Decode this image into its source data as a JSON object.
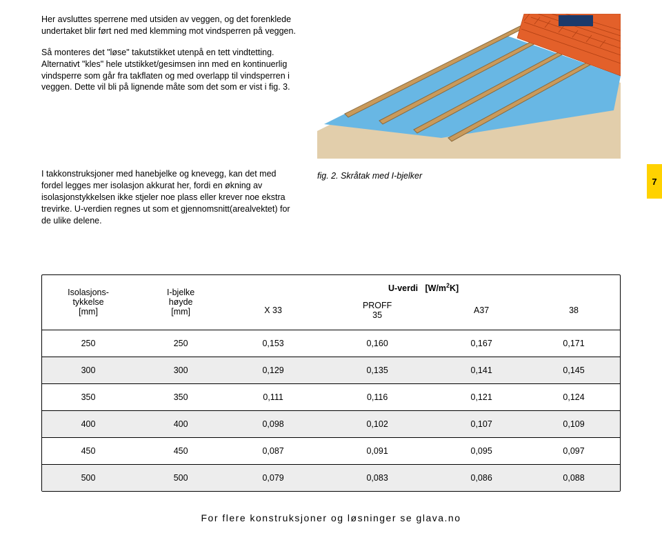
{
  "para1": "Her avsluttes sperrene med utsiden av veggen, og det forenklede undertaket blir ført ned med klemming mot vindsperren på veggen.",
  "para2": "Så monteres det \"løse\" takutstikket utenpå en tett vindtetting. Alternativt \"kles\" hele utstikket/gesimsen inn med en kontinuerlig vindsperre som går fra takflaten og med overlapp til vindsperren i veggen. Dette vil bli på lignende måte som det som er vist i fig. 3.",
  "para3": "I takkonstruksjoner med hanebjelke og knevegg, kan det med fordel legges mer isolasjon akkurat her, fordi en økning av isolasjonstykkelsen ikke stjeler noe plass eller krever noe ekstra trevirke. U-verdien regnes ut som et gjennomsnitt(arealvektet) for de ulike delene.",
  "figcaption": "fig. 2. Skråtak med I-bjelker",
  "page_tab": "7",
  "illustration": {
    "tile_color": "#e3602a",
    "underlayer_color": "#68b7e4",
    "wood_color": "#c99a5b",
    "base_color": "#e2ceab"
  },
  "table": {
    "header": {
      "col1_line1": "Isolasjons-",
      "col1_line2": "tykkelse",
      "col1_line3": "[mm]",
      "col2_line1": "I-bjelke",
      "col2_line2": "høyde",
      "col2_line3": "[mm]",
      "uverdi_label": "U-verdi   [W/m²K]",
      "sub": [
        "X 33",
        "PROFF 35",
        "A37",
        "38"
      ]
    },
    "rows": [
      [
        "250",
        "250",
        "0,153",
        "0,160",
        "0,167",
        "0,171"
      ],
      [
        "300",
        "300",
        "0,129",
        "0,135",
        "0,141",
        "0,145"
      ],
      [
        "350",
        "350",
        "0,111",
        "0,116",
        "0,121",
        "0,124"
      ],
      [
        "400",
        "400",
        "0,098",
        "0,102",
        "0,107",
        "0,109"
      ],
      [
        "450",
        "450",
        "0,087",
        "0,091",
        "0,095",
        "0,097"
      ],
      [
        "500",
        "500",
        "0,079",
        "0,083",
        "0,086",
        "0,088"
      ]
    ]
  },
  "footer": "For flere konstruksjoner og løsninger se glava.no"
}
